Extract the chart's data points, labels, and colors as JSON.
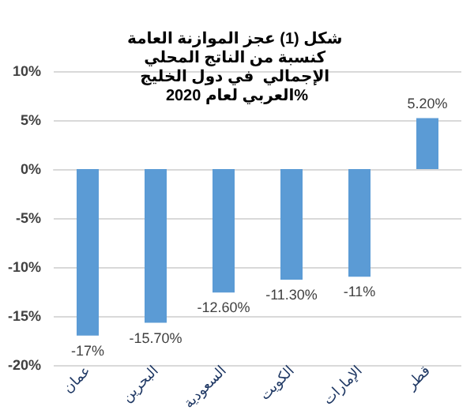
{
  "chart_data": {
    "type": "bar",
    "title": "شكل (1) عجز الموازنة العامة كنسبة من الناتج المحلي الإجمالي  في دول الخليج العربي لعام 2020%",
    "categories": [
      "عمان",
      "البحرين",
      "السعودية",
      "الكويت",
      "الإمارات",
      "قطر"
    ],
    "values": [
      -17,
      -15.7,
      -12.6,
      -11.3,
      -11,
      5.2
    ],
    "value_labels": [
      "-17%",
      "-15.70%",
      "-12.60%",
      "-11.30%",
      "-11%",
      "5.20%"
    ],
    "color": "#5b9bd5",
    "ylim": [
      -20,
      10
    ],
    "yticks": [
      {
        "value": -20,
        "label": "-20%"
      },
      {
        "value": -15,
        "label": "-15%"
      },
      {
        "value": -10,
        "label": "-10%"
      },
      {
        "value": -5,
        "label": "-5%"
      },
      {
        "value": 0,
        "label": "0%"
      },
      {
        "value": 5,
        "label": "5%"
      },
      {
        "value": 10,
        "label": "10%"
      }
    ],
    "grid": "y"
  }
}
